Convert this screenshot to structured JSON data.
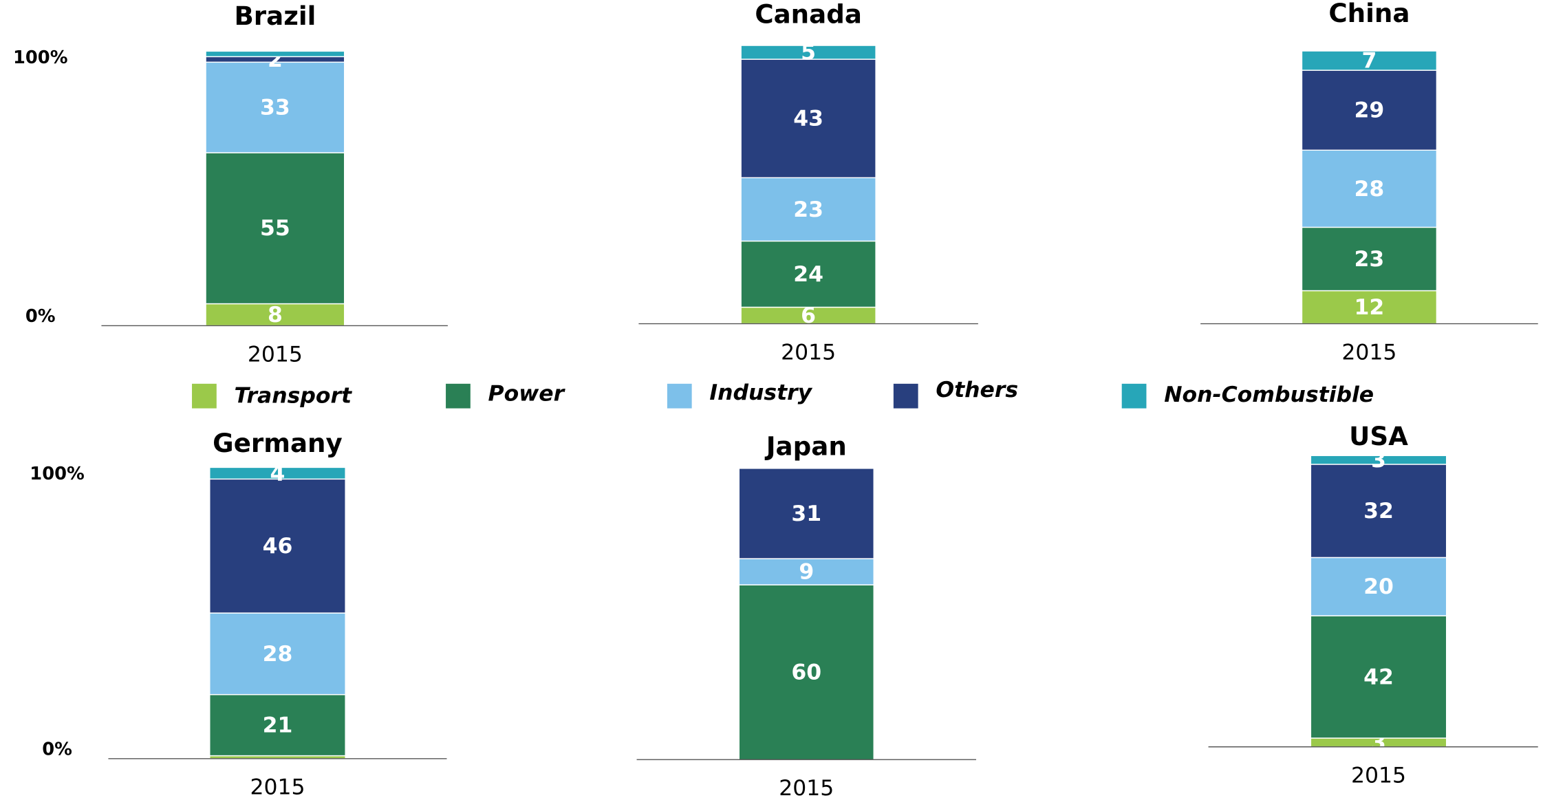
{
  "chart_data": [
    {
      "type": "bar",
      "title": "Brazil",
      "categories": [
        "2015"
      ],
      "ylim": [
        0,
        100
      ],
      "yticks": [
        {
          "value": 0,
          "label": "0%"
        },
        {
          "value": 100,
          "label": "100%"
        }
      ],
      "series": [
        {
          "name": "Transport",
          "color": "#9bc94a",
          "values": [
            8
          ],
          "value_labels": [
            "8"
          ]
        },
        {
          "name": "Power",
          "color": "#2a8055",
          "values": [
            55
          ],
          "value_labels": [
            "55"
          ]
        },
        {
          "name": "Industry",
          "color": "#7dc0ea",
          "values": [
            33
          ],
          "value_labels": [
            "33"
          ]
        },
        {
          "name": "Others",
          "color": "#283f7e",
          "values": [
            2
          ],
          "value_labels": [
            "2"
          ]
        },
        {
          "name": "Non-Combustible",
          "color": "#27a6b8",
          "values": [
            2
          ],
          "value_labels": [
            null
          ]
        }
      ]
    },
    {
      "type": "bar",
      "title": "Canada",
      "categories": [
        "2015"
      ],
      "ylim": [
        0,
        100
      ],
      "series": [
        {
          "name": "Transport",
          "color": "#9bc94a",
          "values": [
            6
          ],
          "value_labels": [
            "6"
          ]
        },
        {
          "name": "Power",
          "color": "#2a8055",
          "values": [
            24
          ],
          "value_labels": [
            "24"
          ]
        },
        {
          "name": "Industry",
          "color": "#7dc0ea",
          "values": [
            23
          ],
          "value_labels": [
            "23"
          ]
        },
        {
          "name": "Others",
          "color": "#283f7e",
          "values": [
            43
          ],
          "value_labels": [
            "43"
          ]
        },
        {
          "name": "Non-Combustible",
          "color": "#27a6b8",
          "values": [
            5
          ],
          "value_labels": [
            "5"
          ]
        }
      ]
    },
    {
      "type": "bar",
      "title": "China",
      "categories": [
        "2015"
      ],
      "ylim": [
        0,
        100
      ],
      "series": [
        {
          "name": "Transport",
          "color": "#9bc94a",
          "values": [
            12
          ],
          "value_labels": [
            "12"
          ]
        },
        {
          "name": "Power",
          "color": "#2a8055",
          "values": [
            23
          ],
          "value_labels": [
            "23"
          ]
        },
        {
          "name": "Industry",
          "color": "#7dc0ea",
          "values": [
            28
          ],
          "value_labels": [
            "28"
          ]
        },
        {
          "name": "Others",
          "color": "#283f7e",
          "values": [
            29
          ],
          "value_labels": [
            "29"
          ]
        },
        {
          "name": "Non-Combustible",
          "color": "#27a6b8",
          "values": [
            7
          ],
          "value_labels": [
            "7"
          ]
        }
      ]
    },
    {
      "type": "bar",
      "title": "Germany",
      "categories": [
        "2015"
      ],
      "ylim": [
        0,
        100
      ],
      "yticks": [
        {
          "value": 0,
          "label": "0%"
        },
        {
          "value": 100,
          "label": "100%"
        }
      ],
      "series": [
        {
          "name": "Transport",
          "color": "#9bc94a",
          "values": [
            1
          ],
          "value_labels": [
            null
          ]
        },
        {
          "name": "Power",
          "color": "#2a8055",
          "values": [
            21
          ],
          "value_labels": [
            "21"
          ]
        },
        {
          "name": "Industry",
          "color": "#7dc0ea",
          "values": [
            28
          ],
          "value_labels": [
            "28"
          ]
        },
        {
          "name": "Others",
          "color": "#283f7e",
          "values": [
            46
          ],
          "value_labels": [
            "46"
          ]
        },
        {
          "name": "Non-Combustible",
          "color": "#27a6b8",
          "values": [
            4
          ],
          "value_labels": [
            "4"
          ]
        }
      ]
    },
    {
      "type": "bar",
      "title": "Japan",
      "categories": [
        "2015"
      ],
      "ylim": [
        0,
        100
      ],
      "series": [
        {
          "name": "Transport",
          "color": "#9bc94a",
          "values": [
            0
          ],
          "value_labels": [
            null
          ]
        },
        {
          "name": "Power",
          "color": "#2a8055",
          "values": [
            60
          ],
          "value_labels": [
            "60"
          ]
        },
        {
          "name": "Industry",
          "color": "#7dc0ea",
          "values": [
            9
          ],
          "value_labels": [
            "9"
          ]
        },
        {
          "name": "Others",
          "color": "#283f7e",
          "values": [
            31
          ],
          "value_labels": [
            "31"
          ]
        },
        {
          "name": "Non-Combustible",
          "color": "#27a6b8",
          "values": [
            0
          ],
          "value_labels": [
            null
          ]
        }
      ]
    },
    {
      "type": "bar",
      "title": "USA",
      "categories": [
        "2015"
      ],
      "ylim": [
        0,
        100
      ],
      "series": [
        {
          "name": "Transport",
          "color": "#9bc94a",
          "values": [
            3
          ],
          "value_labels": [
            "3"
          ]
        },
        {
          "name": "Power",
          "color": "#2a8055",
          "values": [
            42
          ],
          "value_labels": [
            "42"
          ]
        },
        {
          "name": "Industry",
          "color": "#7dc0ea",
          "values": [
            20
          ],
          "value_labels": [
            "20"
          ]
        },
        {
          "name": "Others",
          "color": "#283f7e",
          "values": [
            32
          ],
          "value_labels": [
            "32"
          ]
        },
        {
          "name": "Non-Combustible",
          "color": "#27a6b8",
          "values": [
            3
          ],
          "value_labels": [
            "3"
          ]
        }
      ]
    }
  ]
}
